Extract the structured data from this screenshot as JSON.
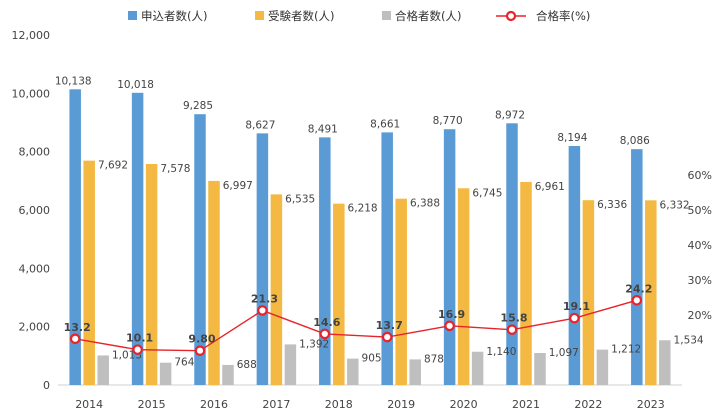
{
  "chart_data": {
    "type": "bar",
    "title": "",
    "xlabel": "",
    "ylabel": "",
    "categories": [
      "2014",
      "2015",
      "2016",
      "2017",
      "2018",
      "2019",
      "2020",
      "2021",
      "2022",
      "2023"
    ],
    "ylim": [
      0,
      12000
    ],
    "yticks": [
      "0",
      "2,000",
      "4,000",
      "6,000",
      "8,000",
      "10,000",
      "12,000"
    ],
    "y2lim": [
      0,
      100
    ],
    "y2ticks": [
      "20%",
      "30%",
      "40%",
      "50%",
      "60%"
    ],
    "legend_position": "top",
    "grid": false,
    "colors": {
      "applicants": "#5b9bd5",
      "examinees": "#f4b942",
      "passers": "#bfbfbf",
      "rate_line": "#e8232a",
      "rate_marker_fill": "#ffffff"
    },
    "series": [
      {
        "key": "applicants",
        "name": "申込者数(人)",
        "type": "bar",
        "values": [
          10138,
          10018,
          9285,
          8627,
          8491,
          8661,
          8770,
          8972,
          8194,
          8086
        ],
        "labels": [
          "10,138",
          "10,018",
          "9,285",
          "8,627",
          "8,491",
          "8,661",
          "8,770",
          "8,972",
          "8,194",
          "8,086"
        ]
      },
      {
        "key": "examinees",
        "name": "受験者数(人)",
        "type": "bar",
        "values": [
          7692,
          7578,
          6997,
          6535,
          6218,
          6388,
          6745,
          6961,
          6336,
          6332
        ],
        "labels": [
          "7,692",
          "7,578",
          "6,997",
          "6,535",
          "6,218",
          "6,388",
          "6,745",
          "6,961",
          "6,336",
          "6,332"
        ]
      },
      {
        "key": "passers",
        "name": "合格者数(人)",
        "type": "bar",
        "values": [
          1013,
          764,
          688,
          1392,
          905,
          878,
          1140,
          1097,
          1212,
          1534
        ],
        "labels": [
          "1,013",
          "764",
          "688",
          "1,392",
          "905",
          "878",
          "1,140",
          "1,097",
          "1,212",
          "1,534"
        ]
      },
      {
        "key": "rate",
        "name": "合格率(%)",
        "type": "line",
        "axis": "secondary",
        "values": [
          13.2,
          10.1,
          9.8,
          21.3,
          14.6,
          13.7,
          16.9,
          15.8,
          19.1,
          24.2
        ],
        "labels": [
          "13.2",
          "10.1",
          "9.80",
          "21.3",
          "14.6",
          "13.7",
          "16.9",
          "15.8",
          "19.1",
          "24.2"
        ]
      }
    ]
  }
}
